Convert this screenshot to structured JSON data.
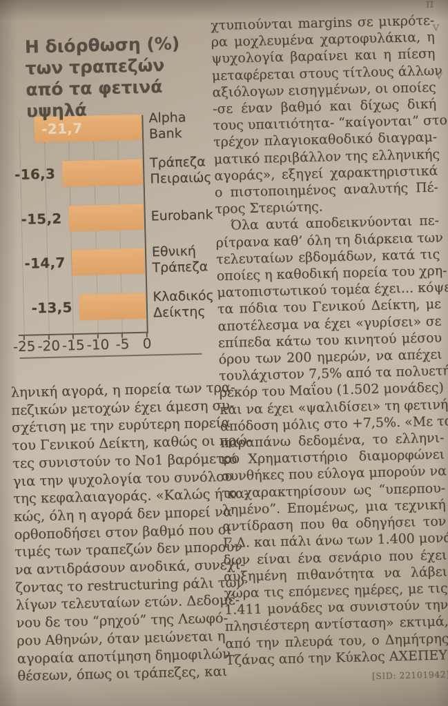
{
  "page": {
    "edge_fragments": [
      "π",
      "v",
      "v"
    ]
  },
  "chart_data": {
    "type": "bar",
    "orientation": "horizontal",
    "title": "Η διόρθωση (%) των τραπεζών από τα φετινά υψηλά",
    "title_lines": [
      "Η διόρθωση (%)",
      "των τραπεζών",
      "από τα φετινά υψηλά"
    ],
    "categories": [
      "Alpha Bank",
      "Τράπεζα Πειραιώς",
      "Eurobank",
      "Εθνική Τράπεζα",
      "Κλαδικός Δείκτης"
    ],
    "category_lines": [
      [
        "Alpha",
        "Bank"
      ],
      [
        "Τράπεζα",
        "Πειραιώς"
      ],
      [
        "Eurobank"
      ],
      [
        "Εθνική",
        "Τράπεζα"
      ],
      [
        "Κλαδικός",
        "Δείκτης"
      ]
    ],
    "values": [
      -21.7,
      -16.3,
      -15.2,
      -14.7,
      -13.5
    ],
    "value_labels": [
      "-21,7",
      "-16,3",
      "-15,2",
      "-14,7",
      "-13,5"
    ],
    "label_inside": [
      true,
      false,
      false,
      false,
      false
    ],
    "xlim": [
      -25,
      0
    ],
    "x_ticks": [
      "-25",
      "-20",
      "-15",
      "-10",
      "-5",
      "0"
    ],
    "xlabel": "",
    "ylabel": "",
    "grid": "vertical-dotted",
    "legend": "none",
    "bar_color": "#e3aa70"
  },
  "article": {
    "left_column_lines": [
      {
        "t": "ληνική αγορά, η πορεία των τρα-"
      },
      {
        "t": "πεζικών μετοχών έχει άμεση συ-"
      },
      {
        "t": "σχέτιση με την ευρύτερη πορεία"
      },
      {
        "t": "του Γενικού Δείκτη, καθώς οι πρώ-"
      },
      {
        "t": "τες συνιστούν το Νο1 βαρόμετρο"
      },
      {
        "t": "για την ψυχολογία του συνόλου"
      },
      {
        "t": "της κεφαλαιαγοράς. «Καλώς ή κα-"
      },
      {
        "t": "κώς, όλη η αγορά δεν μπορεί να"
      },
      {
        "t": "ορθοποδήσει στον βαθμό που οι"
      },
      {
        "t": "τιμές των τραπεζών δεν μπορούν"
      },
      {
        "t": "να αντιδράσουν ανοδικά, συνεχί-"
      },
      {
        "t": "ζοντας το restructuring ράλι των"
      },
      {
        "t": "λίγων τελευταίων ετών. Δεδομέ-"
      },
      {
        "t": "νου δε του “ρηχού” της Λεωφό-"
      },
      {
        "t": "ρου Αθηνών, όταν μειώνεται η"
      },
      {
        "t": "αγοραία αποτίμηση δημοφιλών"
      },
      {
        "t": "θέσεων, όπως οι τράπεζες, και"
      }
    ],
    "right_column_lines": [
      {
        "t": "χτυπιούνται margins σε μικρότε-"
      },
      {
        "t": "ρα μοχλευμένα χαρτοφυλάκια, η"
      },
      {
        "t": "ψυχολογία βαραίνει και η πίεση"
      },
      {
        "t": "μεταφέρεται στους τίτλους άλλων"
      },
      {
        "t": "αξιόλογων εισηγμένων, οι οποίες"
      },
      {
        "t": "-σε έναν βαθμό και δίχως δική"
      },
      {
        "t": "τους υπαιτιότητα- “καίγονται” στο"
      },
      {
        "t": "τρέχον πλαγιοκαθοδικό διαγραμ-"
      },
      {
        "t": "ματικό περιβάλλον της ελληνικής"
      },
      {
        "t": "αγοράς», εξηγεί χαρακτηριστικά"
      },
      {
        "t": "ο πιστοποιημένος αναλυτής Πέ-"
      },
      {
        "t": "τρος Στεριώτης.",
        "end": true
      },
      {
        "t": "Όλα αυτά αποδεικνύονται πε-",
        "indent": true
      },
      {
        "t": "ρίτρανα καθ’ όλη τη διάρκεια των"
      },
      {
        "t": "τελευταίων εβδομάδων, κατά τις"
      },
      {
        "t": "οποίες η καθοδική πορεία του χρη-"
      },
      {
        "t": "ματοπιστωτικού τομέα έχει... κόψει"
      },
      {
        "t": "τα πόδια του Γενικού Δείκτη, με"
      },
      {
        "t": "αποτέλεσμα να έχει «γυρίσει» σε"
      },
      {
        "t": "επίπεδα κάτω του κινητού μέσου"
      },
      {
        "t": "όρου των 200 ημερών, να απέχει"
      },
      {
        "t": "τουλάχιστον 7,5% από τα πολυετή"
      },
      {
        "t": "ρεκόρ του Μαΐου (1.502 μονάδες)"
      },
      {
        "t": "και να έχει «ψαλιδίσει» τη φετινή"
      },
      {
        "t": "απόδοση μόλις στο +7,5%. «Με τα"
      },
      {
        "t": "παραπάνω δεδομένα, το ελληνι-"
      },
      {
        "t": "κό Χρηματιστήριο διαμορφώνει"
      },
      {
        "t": "συνθήκες που εύλογα μπορούν να"
      },
      {
        "t": "το χαρακτηρίσουν ως “υπερπου-"
      },
      {
        "t": "λημένο”. Επομένως, μια τεχνική"
      },
      {
        "t": "αντίδραση που θα οδηγήσει τον"
      },
      {
        "t": "Γ.Δ. και πάλι άνω των 1.400 μονά-"
      },
      {
        "t": "δων είναι ένα σενάριο που έχει"
      },
      {
        "t": "αυξημένη πιθανότητα να λάβει"
      },
      {
        "t": "χώρα τις επόμενες ημέρες, με τις"
      },
      {
        "t": "1.411 μονάδες να συνιστούν την"
      },
      {
        "t": "πλησιέστερη αντίσταση» εκτιμά,"
      },
      {
        "t": "από την πλευρά του, ο Δημήτρης"
      },
      {
        "t": "Τζάνας από την Κύκλος ΑΧΕΠΕΥ.",
        "end": true
      },
      {
        "t": "[SID: 22101942]",
        "sid": true
      }
    ]
  }
}
